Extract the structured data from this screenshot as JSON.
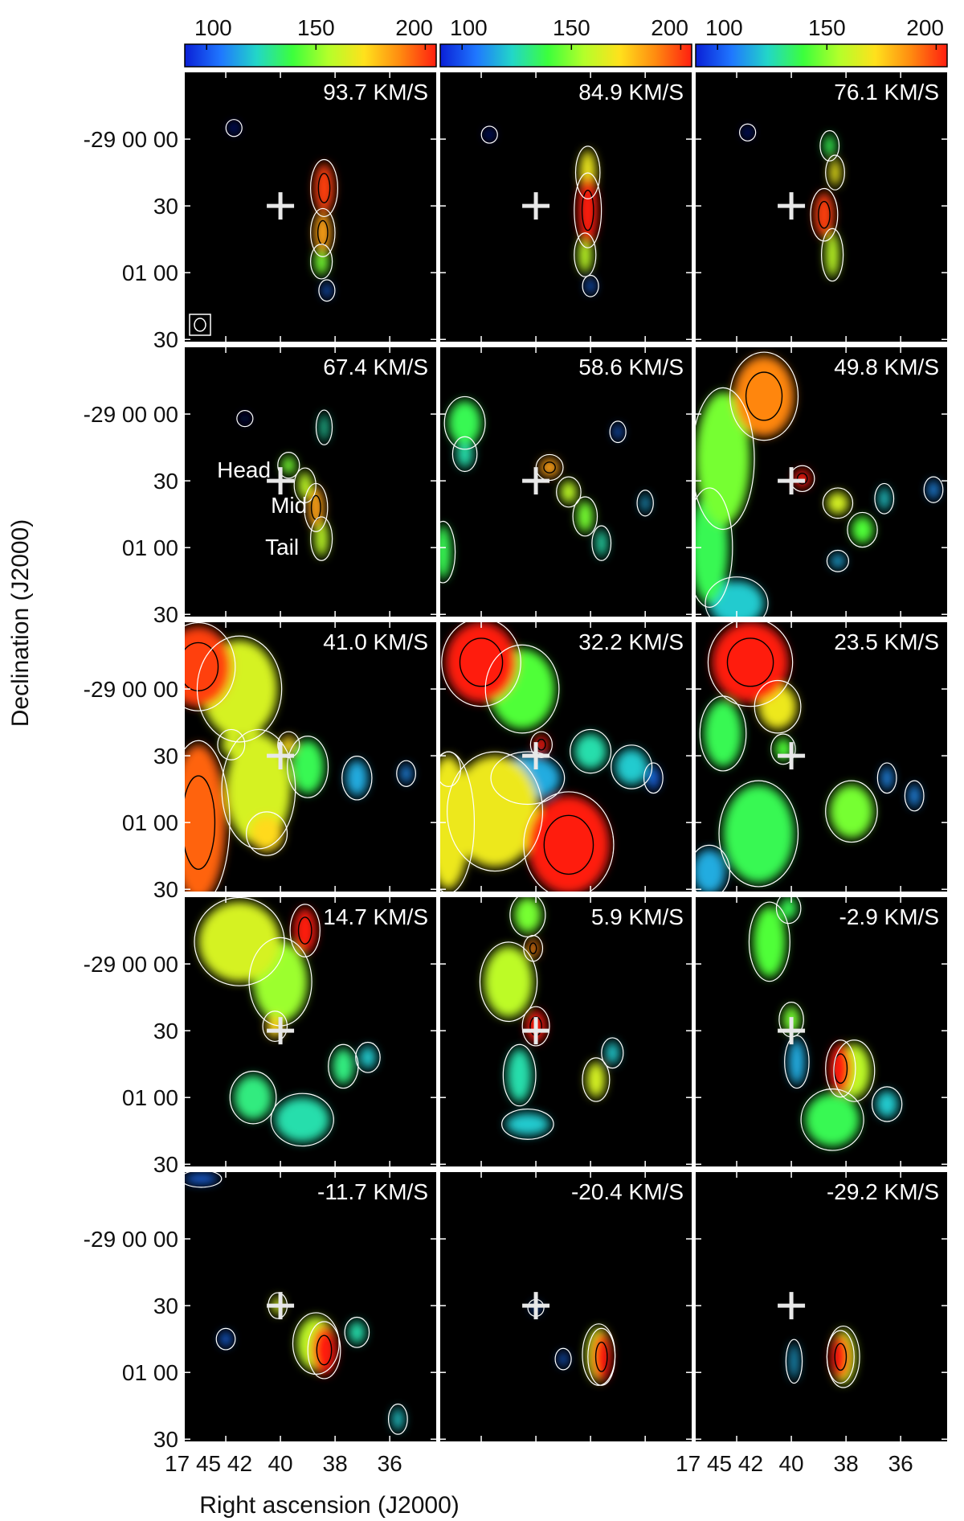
{
  "chart_data": {
    "type": "heatmap",
    "subtype": "channel maps",
    "xlabel": "Right ascension (J2000)",
    "ylabel": "Declination (J2000)",
    "colorbar": {
      "ticks": [
        "100",
        "150",
        "200"
      ],
      "range": [
        80,
        205
      ],
      "colors": [
        "#000000",
        "#0a1fd6",
        "#1f77ff",
        "#22d6c8",
        "#3cff3c",
        "#b4ff2a",
        "#ffe11c",
        "#ff8a10",
        "#ff1f10"
      ]
    },
    "x_ticks": [
      "17 45 42",
      "40",
      "38",
      "36"
    ],
    "x_tick_values_sec": [
      42,
      40,
      38,
      36
    ],
    "x_range_sec": [
      43.5,
      34.3
    ],
    "y_ticks": [
      "-29 00 00",
      "30",
      "01 00",
      "30"
    ],
    "y_tick_values_arcsec": [
      0,
      30,
      60,
      90
    ],
    "y_range_arcsec": [
      -30,
      91
    ],
    "contour_colors": {
      "outer": "#ffffff",
      "inner": "#000000"
    },
    "marker": {
      "symbol": "+",
      "ra_sec": 40,
      "dec_arcsec": 30
    },
    "annotations": [
      "Head",
      "Mid",
      "Tail"
    ],
    "channels": [
      {
        "velocity": "93.7 KM/S",
        "blobs": [
          [
            38.4,
            22,
            0.35,
            11,
            200
          ],
          [
            38.45,
            42,
            0.3,
            9,
            185
          ],
          [
            38.5,
            55,
            0.25,
            6,
            150
          ],
          [
            41.7,
            -5,
            0.08,
            2,
            95
          ],
          [
            38.3,
            68,
            0.12,
            3,
            110
          ]
        ]
      },
      {
        "velocity": "84.9 KM/S",
        "blobs": [
          [
            38.1,
            32,
            0.35,
            15,
            205
          ],
          [
            38.1,
            15,
            0.3,
            10,
            170
          ],
          [
            38.2,
            52,
            0.25,
            8,
            160
          ],
          [
            38.0,
            66,
            0.12,
            3,
            110
          ],
          [
            41.7,
            -2,
            0.08,
            2,
            95
          ]
        ]
      },
      {
        "velocity": "76.1 KM/S",
        "blobs": [
          [
            38.8,
            34,
            0.35,
            10,
            200
          ],
          [
            38.5,
            52,
            0.25,
            10,
            160
          ],
          [
            38.4,
            15,
            0.2,
            6,
            170
          ],
          [
            38.6,
            3,
            0.2,
            5,
            140
          ],
          [
            41.6,
            -3,
            0.08,
            2,
            95
          ]
        ]
      },
      {
        "velocity": "67.4 KM/S",
        "blobs": [
          [
            39.7,
            23,
            0.25,
            4,
            150
          ],
          [
            39.1,
            32,
            0.25,
            6,
            160
          ],
          [
            38.7,
            42,
            0.28,
            9,
            185
          ],
          [
            38.5,
            56,
            0.25,
            8,
            160
          ],
          [
            38.4,
            6,
            0.12,
            6,
            130
          ],
          [
            41.3,
            2,
            0.06,
            1.5,
            90
          ]
        ]
      },
      {
        "velocity": "58.6 KM/S",
        "blobs": [
          [
            39.5,
            24,
            0.35,
            4,
            185
          ],
          [
            38.8,
            35,
            0.3,
            5,
            160
          ],
          [
            38.2,
            46,
            0.3,
            7,
            150
          ],
          [
            37.6,
            58,
            0.2,
            6,
            130
          ],
          [
            42.6,
            4,
            0.6,
            10,
            140
          ],
          [
            42.6,
            18,
            0.3,
            6,
            130
          ],
          [
            36.0,
            40,
            0.15,
            4,
            120
          ],
          [
            43.4,
            62,
            0.3,
            12,
            140
          ],
          [
            37.0,
            8,
            0.1,
            3,
            110
          ]
        ]
      },
      {
        "velocity": "49.8 KM/S",
        "blobs": [
          [
            39.6,
            29,
            0.3,
            4,
            205
          ],
          [
            38.3,
            40,
            0.4,
            5,
            165
          ],
          [
            37.4,
            52,
            0.4,
            6,
            145
          ],
          [
            36.6,
            38,
            0.2,
            5,
            125
          ],
          [
            41.0,
            -8,
            1.1,
            18,
            190
          ],
          [
            42.5,
            20,
            1.0,
            30,
            150
          ],
          [
            43.0,
            60,
            0.7,
            25,
            140
          ],
          [
            42.0,
            85,
            1.0,
            10,
            125
          ],
          [
            38.3,
            66,
            0.25,
            3,
            120
          ],
          [
            34.8,
            34,
            0.2,
            4,
            115
          ]
        ]
      },
      {
        "velocity": "41.0 KM/S",
        "blobs": [
          [
            43.0,
            -10,
            1.2,
            18,
            200
          ],
          [
            41.5,
            0,
            1.4,
            22,
            165
          ],
          [
            40.8,
            45,
            1.2,
            25,
            165
          ],
          [
            43.0,
            60,
            1.0,
            35,
            195
          ],
          [
            40.5,
            65,
            0.6,
            8,
            175
          ],
          [
            39.0,
            35,
            0.6,
            12,
            140
          ],
          [
            37.2,
            40,
            0.4,
            8,
            120
          ],
          [
            35.4,
            38,
            0.2,
            4,
            115
          ],
          [
            41.8,
            25,
            0.35,
            5,
            165
          ],
          [
            39.7,
            25,
            0.25,
            4,
            175
          ]
        ]
      },
      {
        "velocity": "32.2 KM/S",
        "blobs": [
          [
            42.0,
            -12,
            1.3,
            18,
            205
          ],
          [
            38.8,
            70,
            1.5,
            22,
            205
          ],
          [
            41.5,
            55,
            1.6,
            25,
            170
          ],
          [
            43.2,
            60,
            0.8,
            30,
            170
          ],
          [
            39.8,
            25,
            0.25,
            4,
            205
          ],
          [
            40.5,
            0,
            1.2,
            18,
            145
          ],
          [
            38.0,
            28,
            0.6,
            8,
            130
          ],
          [
            36.5,
            35,
            0.6,
            8,
            125
          ],
          [
            40.3,
            40,
            1.2,
            10,
            120
          ],
          [
            35.7,
            40,
            0.2,
            5,
            110
          ],
          [
            43.2,
            36,
            0.3,
            6,
            130
          ]
        ]
      },
      {
        "velocity": "23.5 KM/S",
        "blobs": [
          [
            41.5,
            -12,
            1.4,
            18,
            205
          ],
          [
            40.5,
            8,
            0.7,
            10,
            170
          ],
          [
            42.5,
            20,
            0.7,
            15,
            140
          ],
          [
            41.2,
            65,
            1.3,
            22,
            140
          ],
          [
            37.8,
            55,
            0.8,
            12,
            150
          ],
          [
            40.3,
            27,
            0.3,
            5,
            145
          ],
          [
            35.5,
            48,
            0.2,
            5,
            115
          ],
          [
            43.0,
            82,
            0.6,
            10,
            120
          ],
          [
            36.5,
            40,
            0.2,
            5,
            115
          ]
        ]
      },
      {
        "velocity": "14.7 KM/S",
        "blobs": [
          [
            39.1,
            -15,
            0.4,
            10,
            205
          ],
          [
            41.5,
            -10,
            1.5,
            18,
            165
          ],
          [
            40.0,
            8,
            1.0,
            18,
            155
          ],
          [
            40.2,
            28,
            0.3,
            5,
            175
          ],
          [
            41.0,
            60,
            0.7,
            10,
            135
          ],
          [
            39.2,
            70,
            1.0,
            10,
            130
          ],
          [
            37.7,
            46,
            0.4,
            8,
            135
          ],
          [
            36.8,
            42,
            0.3,
            5,
            125
          ]
        ]
      },
      {
        "velocity": "5.9 KM/S",
        "blobs": [
          [
            41.0,
            8,
            0.9,
            16,
            160
          ],
          [
            40.0,
            28,
            0.35,
            7,
            205
          ],
          [
            40.1,
            -7,
            0.2,
            4,
            190
          ],
          [
            40.3,
            -22,
            0.5,
            8,
            150
          ],
          [
            40.6,
            50,
            0.45,
            12,
            130
          ],
          [
            37.8,
            52,
            0.35,
            8,
            165
          ],
          [
            40.3,
            72,
            0.8,
            5,
            125
          ],
          [
            37.2,
            40,
            0.25,
            5,
            125
          ]
        ]
      },
      {
        "velocity": "-2.9 KM/S",
        "blobs": [
          [
            38.2,
            47,
            0.4,
            11,
            205
          ],
          [
            37.7,
            48,
            0.6,
            12,
            160
          ],
          [
            40.8,
            -10,
            0.6,
            16,
            145
          ],
          [
            40.0,
            25,
            0.3,
            6,
            150
          ],
          [
            39.8,
            44,
            0.3,
            10,
            120
          ],
          [
            38.5,
            70,
            1.0,
            12,
            140
          ],
          [
            36.5,
            63,
            0.4,
            6,
            125
          ],
          [
            40.1,
            -25,
            0.3,
            5,
            140
          ]
        ]
      },
      {
        "velocity": "-11.7 KM/S",
        "blobs": [
          [
            38.4,
            50,
            0.45,
            11,
            205
          ],
          [
            38.7,
            47,
            0.7,
            12,
            160
          ],
          [
            40.1,
            30,
            0.2,
            4,
            165
          ],
          [
            37.2,
            42,
            0.3,
            5,
            130
          ],
          [
            35.7,
            81,
            0.2,
            5,
            125
          ],
          [
            42.0,
            45,
            0.2,
            3,
            110
          ],
          [
            42.9,
            -27,
            0.6,
            2,
            110
          ]
        ]
      },
      {
        "velocity": "-20.4 KM/S",
        "blobs": [
          [
            37.6,
            53,
            0.35,
            11,
            205
          ],
          [
            37.7,
            52,
            0.45,
            12,
            160
          ],
          [
            39.0,
            54,
            0.12,
            3,
            110
          ],
          [
            40.0,
            31,
            0.12,
            2,
            110
          ]
        ]
      },
      {
        "velocity": "-29.2 KM/S",
        "blobs": [
          [
            38.2,
            53,
            0.35,
            10,
            205
          ],
          [
            38.1,
            53,
            0.45,
            12,
            160
          ],
          [
            39.9,
            55,
            0.15,
            8,
            120
          ]
        ]
      }
    ]
  }
}
